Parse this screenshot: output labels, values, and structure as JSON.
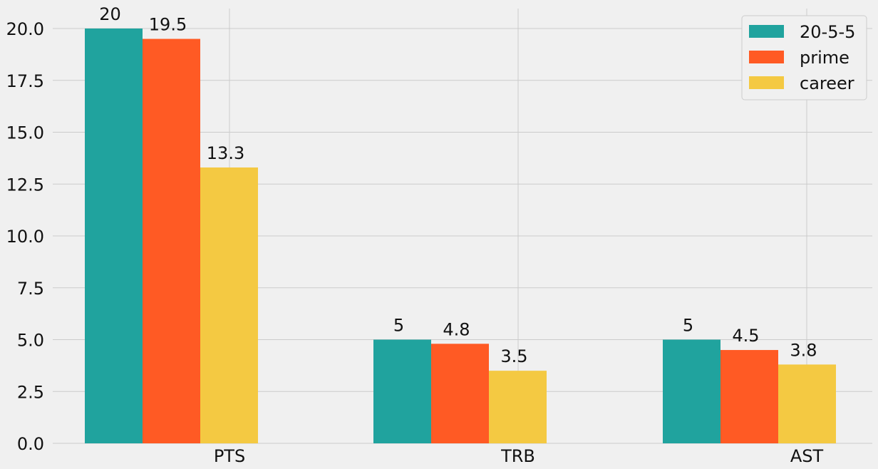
{
  "chart_data": {
    "type": "bar",
    "categories": [
      "PTS",
      "TRB",
      "AST"
    ],
    "series": [
      {
        "name": "20-5-5",
        "values": [
          20,
          5,
          5
        ],
        "labels": [
          "20",
          "5",
          "5"
        ],
        "color": "#20a39e"
      },
      {
        "name": "prime",
        "values": [
          19.5,
          4.8,
          4.5
        ],
        "labels": [
          "19.5",
          "4.8",
          "4.5"
        ],
        "color": "#ff5a24"
      },
      {
        "name": "career",
        "values": [
          13.3,
          3.5,
          3.8
        ],
        "labels": [
          "13.3",
          "3.5",
          "3.8"
        ],
        "color": "#f4c942"
      }
    ],
    "yticks": [
      "0.0",
      "2.5",
      "5.0",
      "7.5",
      "10.0",
      "12.5",
      "15.0",
      "17.5",
      "20.0"
    ],
    "ylim": [
      0,
      20.9
    ],
    "title": "",
    "xlabel": "",
    "ylabel": "",
    "grid": true,
    "legend_position": "top-right",
    "background_color": "#f0f0f0",
    "grid_color": "#cbcbcb"
  }
}
